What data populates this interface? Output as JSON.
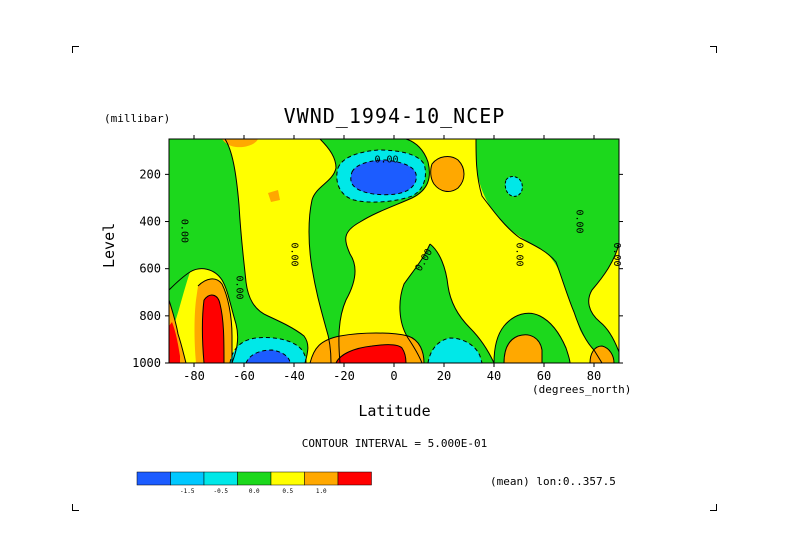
{
  "chart_data": {
    "type": "heatmap",
    "title": "VWND_1994-10_NCEP",
    "ylabel": "Level",
    "yunits": "(millibar)",
    "xlabel": "Latitude",
    "xunits": "(degrees_north)",
    "xlim": [
      -90,
      90
    ],
    "ylim": [
      1000,
      50
    ],
    "x_ticks": [
      "-80",
      "-60",
      "-40",
      "-20",
      "0",
      "20",
      "40",
      "60",
      "80"
    ],
    "x_tick_values": [
      -80,
      -60,
      -40,
      -20,
      0,
      20,
      40,
      60,
      80
    ],
    "y_ticks": [
      "200",
      "400",
      "600",
      "800",
      "1000"
    ],
    "y_tick_values": [
      200,
      400,
      600,
      800,
      1000
    ],
    "contour_interval": "CONTOUR INTERVAL = 5.000E-01",
    "mean_note": "(mean) lon:0..357.5",
    "contour_label": "0.00",
    "legend": {
      "colors": [
        "#1c5cff",
        "#00c8ff",
        "#00e8e8",
        "#1cd81c",
        "#ffff00",
        "#ffa800",
        "#ff0000"
      ],
      "labels": [
        "-1.5",
        "-0.5",
        "0.0",
        "0.5",
        "1.0"
      ]
    },
    "regions": [
      {
        "band": "negative_strong",
        "lat": [
          -12,
          8
        ],
        "lev": [
          120,
          300
        ]
      },
      {
        "band": "negative",
        "lat": [
          -60,
          -40
        ],
        "lev": [
          900,
          1000
        ]
      },
      {
        "band": "negative",
        "lat": [
          10,
          28
        ],
        "lev": [
          890,
          1000
        ]
      },
      {
        "band": "negative",
        "lat": [
          47,
          52
        ],
        "lev": [
          180,
          240
        ]
      },
      {
        "band": "positive_strong",
        "lat": [
          -90,
          -80
        ],
        "lev": [
          820,
          1000
        ]
      },
      {
        "band": "positive_strong",
        "lat": [
          -78,
          -70
        ],
        "lev": [
          720,
          1000
        ]
      },
      {
        "band": "positive_strong",
        "lat": [
          -25,
          5
        ],
        "lev": [
          880,
          1000
        ]
      },
      {
        "band": "positive",
        "lat": [
          -89,
          -82
        ],
        "lev": [
          700,
          1000
        ]
      },
      {
        "band": "positive",
        "lat": [
          -80,
          -66
        ],
        "lev": [
          600,
          1000
        ]
      },
      {
        "band": "positive",
        "lat": [
          14,
          26
        ],
        "lev": [
          120,
          250
        ]
      },
      {
        "band": "positive",
        "lat": [
          42,
          59
        ],
        "lev": [
          830,
          1000
        ]
      },
      {
        "band": "positive",
        "lat": [
          80,
          90
        ],
        "lev": [
          850,
          1000
        ]
      },
      {
        "band": "positive",
        "lat": [
          -30,
          12
        ],
        "lev": [
          840,
          1000
        ]
      }
    ]
  }
}
